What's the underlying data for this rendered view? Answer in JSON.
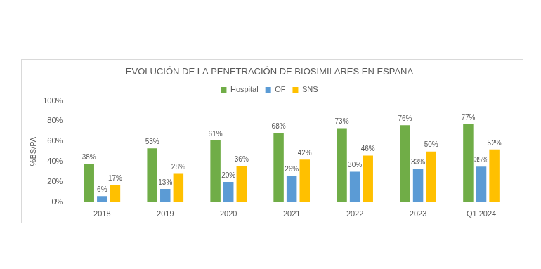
{
  "chart_data": {
    "type": "bar",
    "title": "EVOLUCIÓN DE LA PENETRACIÓN DE BIOSIMILARES EN ESPAÑA",
    "y_label": "%BS/PA",
    "categories": [
      "2018",
      "2019",
      "2020",
      "2021",
      "2022",
      "2023",
      "Q1 2024"
    ],
    "series": [
      {
        "name": "Hospital",
        "color": "#70ad47",
        "values": [
          38,
          53,
          61,
          68,
          73,
          76,
          77
        ],
        "value_labels": [
          "38%",
          "53%",
          "61%",
          "68%",
          "73%",
          "76%",
          "77%"
        ]
      },
      {
        "name": "OF",
        "color": "#5b9bd5",
        "values": [
          6,
          13,
          20,
          26,
          30,
          33,
          35
        ],
        "value_labels": [
          "6%",
          "13%",
          "20%",
          "26%",
          "30%",
          "33%",
          "35%"
        ]
      },
      {
        "name": "SNS",
        "color": "#ffc000",
        "values": [
          17,
          28,
          36,
          42,
          46,
          50,
          52
        ],
        "value_labels": [
          "17%",
          "28%",
          "36%",
          "42%",
          "46%",
          "50%",
          "52%"
        ]
      }
    ],
    "ylim": [
      0,
      100
    ],
    "yticks": [
      {
        "value": 0,
        "label": "0%"
      },
      {
        "value": 20,
        "label": "20%"
      },
      {
        "value": 40,
        "label": "40%"
      },
      {
        "value": 60,
        "label": "60%"
      },
      {
        "value": 80,
        "label": "80%"
      },
      {
        "value": 100,
        "label": "100%"
      }
    ],
    "grid": false,
    "legend": "top",
    "data_labels": true
  }
}
